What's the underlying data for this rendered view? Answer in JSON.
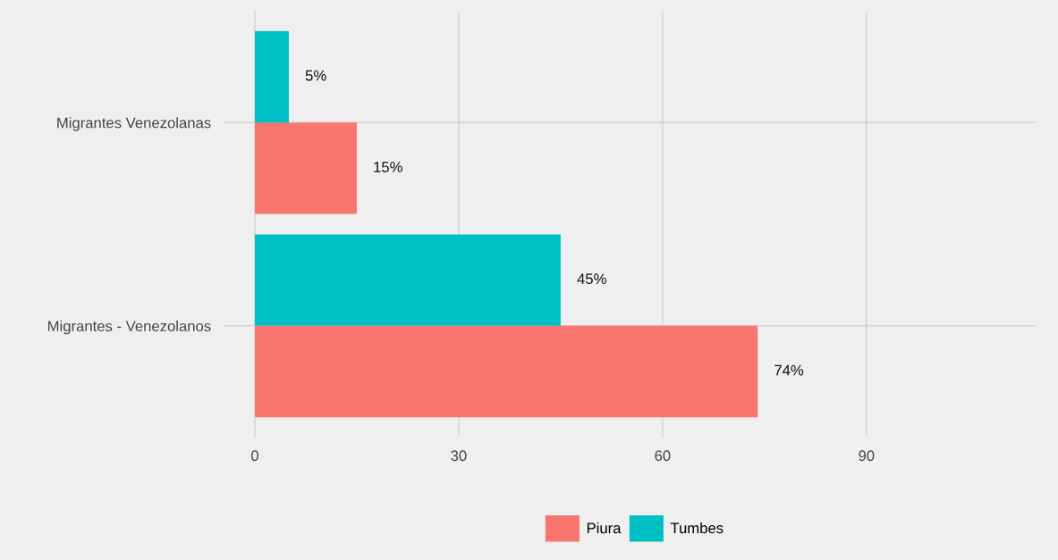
{
  "chart_data": {
    "type": "bar",
    "orientation": "horizontal",
    "categories": [
      "Migrantes Venezolanas",
      "Migrantes - Venezolanos"
    ],
    "series": [
      {
        "name": "Piura",
        "color": "#f8766d",
        "values": [
          15,
          74
        ],
        "value_labels": [
          "15%",
          "74%"
        ]
      },
      {
        "name": "Tumbes",
        "color": "#00bfc4",
        "values": [
          5,
          45
        ],
        "value_labels": [
          "5%",
          "45%"
        ]
      }
    ],
    "xlim": [
      -4.6,
      114.9
    ],
    "xticks": [
      0,
      30,
      60,
      90
    ],
    "grid": true,
    "legend": "bottom"
  }
}
